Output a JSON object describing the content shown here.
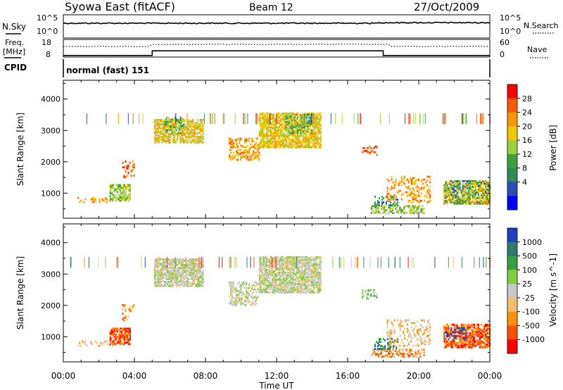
{
  "header": {
    "station": "Syowa East (fitACF)",
    "beam": "Beam 12",
    "date": "27/Oct/2009"
  },
  "noise_panel": {
    "left_label": "N.Sky",
    "right_label": "N.Search",
    "tick_top": "10^5",
    "tick_bottom": "10^0"
  },
  "freq_panel": {
    "left_label_1": "Freq.",
    "left_label_2": "[MHz]",
    "right_label": "Nave",
    "left_ticks": [
      "18",
      "8"
    ],
    "right_ticks": [
      "60",
      "0"
    ]
  },
  "cpid": {
    "label": "CPID",
    "value": "normal (fast) 151"
  },
  "chart_data": [
    {
      "type": "heatmap",
      "name": "power",
      "ylabel": "Slant Range [km]",
      "ylim": [
        200,
        4600
      ],
      "yticks": [
        1000,
        2000,
        3000,
        4000
      ],
      "colorbar_label": "Power [dB]",
      "colorbar_ticks": [
        "28",
        "24",
        "20",
        "16",
        "12",
        "8",
        "4"
      ],
      "colorbar_colors": [
        "#ff0000",
        "#ff5a00",
        "#ff9600",
        "#f0c800",
        "#9bd23c",
        "#3ca03c",
        "#2e8b57",
        "#2850b4",
        "#0000ff"
      ],
      "regions": [
        {
          "t0": 0.8,
          "t1": 2.8,
          "r0": 700,
          "r1": 850,
          "v": 2,
          "density": 0.3
        },
        {
          "t0": 2.6,
          "t1": 3.8,
          "r0": 750,
          "r1": 1250,
          "v": 4,
          "density": 0.65
        },
        {
          "t0": 3.3,
          "t1": 4.0,
          "r0": 1500,
          "r1": 2000,
          "v": 1,
          "density": 0.25
        },
        {
          "t0": 5.1,
          "t1": 7.9,
          "r0": 2600,
          "r1": 3350,
          "v": 3,
          "density": 0.7
        },
        {
          "t0": 5.6,
          "t1": 6.8,
          "r0": 2900,
          "r1": 3400,
          "v": 5,
          "density": 0.35
        },
        {
          "t0": 9.3,
          "t1": 11.0,
          "r0": 2050,
          "r1": 2750,
          "v": 2,
          "density": 0.45
        },
        {
          "t0": 11.0,
          "t1": 14.5,
          "r0": 2450,
          "r1": 3550,
          "v": 3,
          "density": 0.7
        },
        {
          "t0": 12.5,
          "t1": 14.0,
          "r0": 2900,
          "r1": 3500,
          "v": 5,
          "density": 0.35
        },
        {
          "t0": 16.8,
          "t1": 17.6,
          "r0": 2200,
          "r1": 2500,
          "v": 1,
          "density": 0.3
        },
        {
          "t0": 17.3,
          "t1": 20.3,
          "r0": 350,
          "r1": 600,
          "v": 4,
          "density": 0.55
        },
        {
          "t0": 17.5,
          "t1": 18.8,
          "r0": 600,
          "r1": 900,
          "v": 6,
          "density": 0.3
        },
        {
          "t0": 18.2,
          "t1": 20.6,
          "r0": 700,
          "r1": 1550,
          "v": 2,
          "density": 0.25
        },
        {
          "t0": 21.4,
          "t1": 24.0,
          "r0": 650,
          "r1": 1400,
          "v": 6,
          "density": 0.55
        },
        {
          "t0": 21.4,
          "t1": 24.0,
          "r0": 650,
          "r1": 1400,
          "v": 3,
          "density": 0.35
        }
      ]
    },
    {
      "type": "heatmap",
      "name": "velocity",
      "ylabel": "Slant Range [km]",
      "xlabel": "Time UT",
      "ylim": [
        200,
        4600
      ],
      "yticks": [
        1000,
        2000,
        3000,
        4000
      ],
      "xticks": [
        "00:00",
        "04:00",
        "08:00",
        "12:00",
        "16:00",
        "20:00",
        "00:00"
      ],
      "colorbar_label": "Velocity [m s^-1]",
      "colorbar_ticks": [
        "1000",
        "500",
        "100",
        "25",
        "-25",
        "-100",
        "-500",
        "-1000"
      ],
      "colorbar_colors": [
        "#2040c0",
        "#2e7d6a",
        "#34a040",
        "#7ed040",
        "#c8c8c8",
        "#f0c070",
        "#ff9000",
        "#ff5000",
        "#ff0000"
      ],
      "regions": [
        {
          "t0": 0.8,
          "t1": 2.8,
          "r0": 700,
          "r1": 850,
          "v": 5,
          "density": 0.25
        },
        {
          "t0": 2.6,
          "t1": 3.8,
          "r0": 750,
          "r1": 1250,
          "v": 7,
          "density": 0.7
        },
        {
          "t0": 3.3,
          "t1": 4.0,
          "r0": 1500,
          "r1": 2000,
          "v": 6,
          "density": 0.2
        },
        {
          "t0": 5.1,
          "t1": 7.9,
          "r0": 2600,
          "r1": 3500,
          "v": 4,
          "density": 0.75
        },
        {
          "t0": 9.3,
          "t1": 11.0,
          "r0": 2000,
          "r1": 2750,
          "v": 4,
          "density": 0.4
        },
        {
          "t0": 11.0,
          "t1": 14.5,
          "r0": 2400,
          "r1": 3550,
          "v": 4,
          "density": 0.75
        },
        {
          "t0": 16.8,
          "t1": 17.6,
          "r0": 2200,
          "r1": 2500,
          "v": 3,
          "density": 0.3
        },
        {
          "t0": 17.3,
          "t1": 20.3,
          "r0": 350,
          "r1": 600,
          "v": 6,
          "density": 0.5
        },
        {
          "t0": 17.5,
          "t1": 18.8,
          "r0": 600,
          "r1": 950,
          "v": 1,
          "density": 0.35
        },
        {
          "t0": 18.2,
          "t1": 20.6,
          "r0": 700,
          "r1": 1550,
          "v": 5,
          "density": 0.25
        },
        {
          "t0": 21.4,
          "t1": 24.0,
          "r0": 650,
          "r1": 1400,
          "v": 7,
          "density": 0.6
        },
        {
          "t0": 21.4,
          "t1": 22.6,
          "r0": 900,
          "r1": 1300,
          "v": 0,
          "density": 0.3
        }
      ]
    }
  ]
}
